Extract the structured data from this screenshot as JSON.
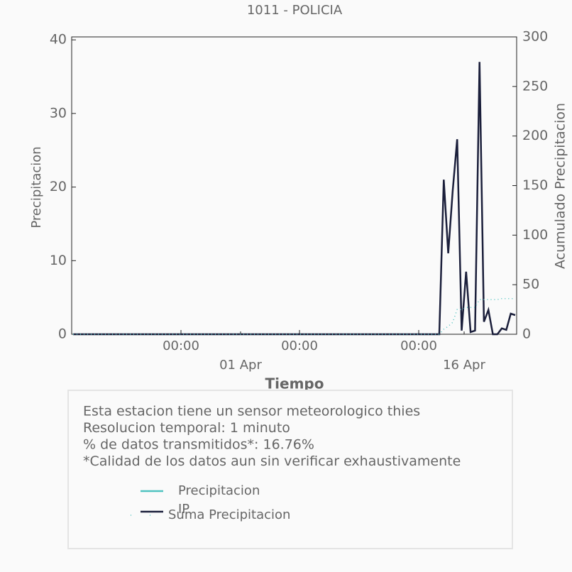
{
  "chart_data": {
    "type": "line",
    "title": "1011 - POLICIA",
    "xlabel": "Tiempo",
    "ylabel": "Precipitacion",
    "y2label": "Acumulado Precipitacion",
    "x_tick_labels": [
      "00:00",
      "00:00",
      "00:00"
    ],
    "x_date_labels": [
      "01 Apr",
      "16 Apr"
    ],
    "ylim": [
      0,
      40.4
    ],
    "yticks": [
      0,
      10,
      20,
      30,
      40
    ],
    "y2lim": [
      0,
      300
    ],
    "y2ticks": [
      0,
      50,
      100,
      150,
      200,
      250,
      300
    ],
    "series": [
      {
        "name": "IP",
        "color": "#1b1f3b",
        "style": "solid",
        "axis": "y",
        "values": [
          0,
          0,
          0,
          0,
          0,
          0,
          0,
          0,
          0,
          0,
          0,
          0,
          0,
          0,
          0,
          0,
          0,
          0,
          0,
          0,
          0,
          0,
          0,
          0,
          0,
          0,
          0,
          0,
          0,
          0,
          0,
          0,
          0,
          0,
          0,
          0,
          0,
          0,
          0,
          0,
          0,
          0,
          0,
          0,
          0,
          0,
          0,
          0,
          0,
          0,
          0,
          0,
          0,
          0,
          0,
          0,
          0,
          0,
          0,
          0,
          0,
          0,
          0,
          0,
          0,
          0,
          0,
          0,
          0,
          0,
          0,
          0,
          0,
          0,
          0,
          0,
          0,
          0,
          0,
          0,
          0,
          0,
          0,
          21,
          11,
          19.5,
          26.5,
          0.5,
          8.5,
          0.3,
          0.5,
          37,
          1.7,
          3.3,
          0,
          0,
          0.8,
          0.6,
          2.8,
          2.6
        ]
      },
      {
        "name": "Suma Precipitacion",
        "color": "#4fc3c0",
        "style": "dotted",
        "axis": "y2",
        "values": [
          0,
          0,
          0,
          0,
          0,
          0,
          0,
          0,
          0,
          0,
          0,
          0,
          0,
          0,
          0,
          0,
          0,
          0,
          0,
          0,
          0,
          0,
          0,
          0,
          0,
          0,
          0,
          0,
          0,
          0,
          0,
          0,
          0,
          0,
          0,
          0,
          0,
          0,
          0,
          0,
          0,
          0,
          0,
          0,
          0,
          0,
          0,
          0,
          0,
          0,
          0,
          0,
          0,
          0,
          0,
          0,
          0,
          0,
          0,
          0,
          0,
          0,
          0,
          0,
          0,
          0,
          0,
          0,
          0,
          0,
          0,
          0,
          0,
          0,
          0,
          0,
          0,
          0,
          0,
          0,
          0,
          0,
          0,
          5,
          8,
          12,
          25,
          25,
          27,
          27,
          27,
          35,
          35,
          35,
          35,
          35,
          36,
          36,
          36,
          36
        ]
      }
    ],
    "legend_extra": {
      "name": "Precipitacion",
      "color": "#4fc3c0"
    },
    "info": [
      "Esta estacion tiene un sensor meteorologico thies",
      "Resolucion temporal: 1 minuto",
      "% de datos transmitidos*: 16.76%",
      "*Calidad de los datos aun sin verificar exhaustivamente"
    ]
  }
}
